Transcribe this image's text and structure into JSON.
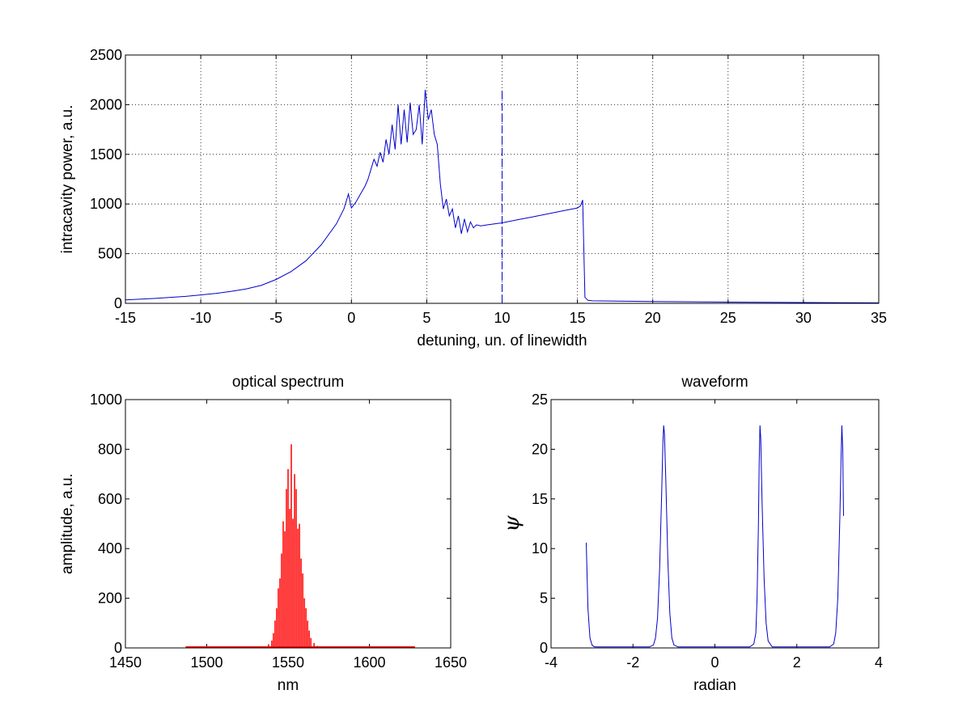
{
  "chart_data": [
    {
      "type": "line",
      "title": "",
      "xlabel": "detuning, un. of linewidth",
      "ylabel": "intracavity power, a.u.",
      "xlim": [
        -15,
        35
      ],
      "ylim": [
        0,
        2500
      ],
      "xticks": [
        "-15",
        "-10",
        "-5",
        "0",
        "5",
        "10",
        "15",
        "20",
        "25",
        "30",
        "35"
      ],
      "yticks": [
        "0",
        "500",
        "1000",
        "1500",
        "2000",
        "2500"
      ],
      "grid": true,
      "color": "#0000cc",
      "marker_line": {
        "x": 10,
        "y_top": 2160,
        "style": "dashed"
      },
      "series": [
        {
          "x": [
            -15,
            -13,
            -11,
            -10,
            -9,
            -8,
            -7,
            -6,
            -5,
            -4,
            -3,
            -2,
            -1,
            -0.5,
            -0.2,
            0,
            0.3,
            0.6,
            0.9,
            1.1,
            1.3,
            1.5,
            1.7,
            1.9,
            2.1,
            2.3,
            2.5,
            2.7,
            2.9,
            3.1,
            3.3,
            3.5,
            3.7,
            3.9,
            4.1,
            4.3,
            4.5,
            4.7,
            4.9,
            5.1,
            5.3,
            5.5,
            5.7,
            5.9,
            6.1,
            6.3,
            6.5,
            6.7,
            6.9,
            7.1,
            7.3,
            7.5,
            7.7,
            7.9,
            8.1,
            8.3,
            8.6,
            9,
            10,
            11,
            12,
            13,
            14,
            15,
            15.2,
            15.35,
            15.5,
            15.7,
            16,
            20,
            25,
            30,
            35
          ],
          "y": [
            35,
            50,
            70,
            85,
            100,
            120,
            145,
            180,
            240,
            320,
            430,
            590,
            800,
            950,
            1100,
            960,
            1020,
            1100,
            1180,
            1250,
            1350,
            1450,
            1380,
            1520,
            1420,
            1650,
            1500,
            1800,
            1550,
            2000,
            1600,
            1950,
            1620,
            2020,
            1700,
            1750,
            2000,
            1600,
            2150,
            1850,
            1950,
            1700,
            1600,
            1200,
            950,
            1050,
            880,
            950,
            760,
            880,
            700,
            850,
            720,
            820,
            760,
            790,
            780,
            790,
            810,
            840,
            870,
            900,
            930,
            960,
            980,
            1040,
            60,
            30,
            25,
            18,
            12,
            8,
            5
          ]
        }
      ]
    },
    {
      "type": "bar",
      "title": "optical spectrum",
      "xlabel": "nm",
      "ylabel": "amplitude, a.u.",
      "xlim": [
        1450,
        1650
      ],
      "ylim": [
        0,
        1000
      ],
      "xticks": [
        "1450",
        "1500",
        "1550",
        "1600",
        "1650"
      ],
      "yticks": [
        "0",
        "200",
        "400",
        "600",
        "800",
        "1000"
      ],
      "grid": false,
      "color": "#ff0000",
      "x": [
        1536,
        1538,
        1540,
        1541,
        1542,
        1543,
        1544,
        1545,
        1546,
        1547,
        1548,
        1549,
        1550,
        1551,
        1552,
        1553,
        1554,
        1555,
        1556,
        1557,
        1558,
        1559,
        1560,
        1561,
        1562,
        1563,
        1564,
        1566,
        1568
      ],
      "values": [
        5,
        15,
        30,
        60,
        110,
        160,
        240,
        280,
        380,
        510,
        470,
        640,
        720,
        560,
        820,
        520,
        700,
        640,
        480,
        500,
        360,
        300,
        200,
        160,
        110,
        70,
        40,
        20,
        8
      ],
      "baseline_range": [
        1487,
        1628
      ]
    },
    {
      "type": "line",
      "title": "waveform",
      "xlabel": "radian",
      "ylabel": "ψ",
      "xlim": [
        -4,
        4
      ],
      "ylim": [
        0,
        25
      ],
      "xticks": [
        "-4",
        "-2",
        "0",
        "2",
        "4"
      ],
      "yticks": [
        "0",
        "5",
        "10",
        "15",
        "20",
        "25"
      ],
      "grid": false,
      "color": "#0000cc",
      "series": [
        {
          "x": [
            -3.14,
            -3.1,
            -3.05,
            -3.0,
            -2.95,
            -2.9,
            -1.6,
            -1.5,
            -1.45,
            -1.4,
            -1.35,
            -1.3,
            -1.27,
            -1.25,
            -1.23,
            -1.2,
            -1.15,
            -1.1,
            -1.05,
            -1.0,
            -0.9,
            0.85,
            0.95,
            1.0,
            1.03,
            1.06,
            1.08,
            1.1,
            1.12,
            1.15,
            1.2,
            1.25,
            1.3,
            1.4,
            2.8,
            2.9,
            2.95,
            3.0,
            3.05,
            3.08,
            3.1,
            3.12,
            3.14
          ],
          "y": [
            10.6,
            4.0,
            1.0,
            0.3,
            0.12,
            0.1,
            0.1,
            0.3,
            1.0,
            3.0,
            8.0,
            15.5,
            20.5,
            22.4,
            21.5,
            17.0,
            9.0,
            3.5,
            1.0,
            0.3,
            0.1,
            0.1,
            0.4,
            1.5,
            5.0,
            12.0,
            18.5,
            22.4,
            21.0,
            15.0,
            7.0,
            2.5,
            0.7,
            0.1,
            0.1,
            0.4,
            1.5,
            5.0,
            13.0,
            19.0,
            22.4,
            20.0,
            13.3
          ]
        }
      ]
    }
  ]
}
